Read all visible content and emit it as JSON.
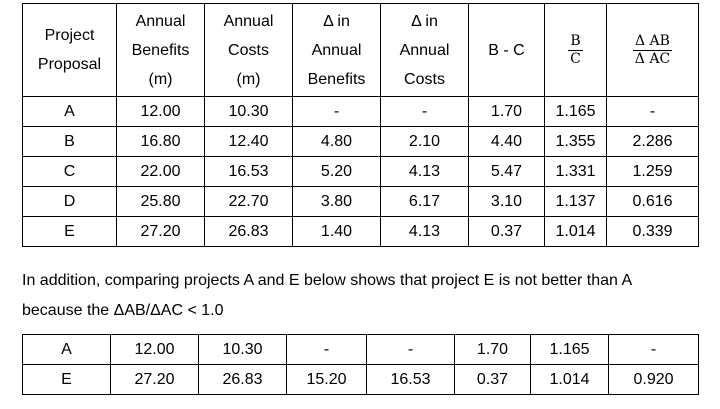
{
  "table1": {
    "headers": {
      "project": [
        "Project",
        "Proposal"
      ],
      "benefits": [
        "Annual",
        "Benefits",
        "(m)"
      ],
      "costs": [
        "Annual",
        "Costs",
        "(m)"
      ],
      "delta_benefits": [
        "Δ in",
        "Annual",
        "Benefits"
      ],
      "delta_costs": [
        "Δ in",
        "Annual",
        "Costs"
      ],
      "bc_diff": "B - C",
      "bc_ratio": {
        "num": "B",
        "den": "C"
      },
      "delta_ratio": {
        "num": "Δ AB",
        "den": "Δ AC"
      }
    },
    "rows": [
      [
        "A",
        "12.00",
        "10.30",
        "-",
        "-",
        "1.70",
        "1.165",
        "-"
      ],
      [
        "B",
        "16.80",
        "12.40",
        "4.80",
        "2.10",
        "4.40",
        "1.355",
        "2.286"
      ],
      [
        "C",
        "22.00",
        "16.53",
        "5.20",
        "4.13",
        "5.47",
        "1.331",
        "1.259"
      ],
      [
        "D",
        "25.80",
        "22.70",
        "3.80",
        "6.17",
        "3.10",
        "1.137",
        "0.616"
      ],
      [
        "E",
        "27.20",
        "26.83",
        "1.40",
        "4.13",
        "0.37",
        "1.014",
        "0.339"
      ]
    ]
  },
  "paragraph": {
    "line1": "In addition, comparing projects A and E below shows that project E is not better than A",
    "line2": "because the ΔAB/ΔAC < 1.0"
  },
  "table2": {
    "rows": [
      [
        "A",
        "12.00",
        "10.30",
        "-",
        "-",
        "1.70",
        "1.165",
        "-"
      ],
      [
        "E",
        "27.20",
        "26.83",
        "15.20",
        "16.53",
        "0.37",
        "1.014",
        "0.920"
      ]
    ]
  }
}
